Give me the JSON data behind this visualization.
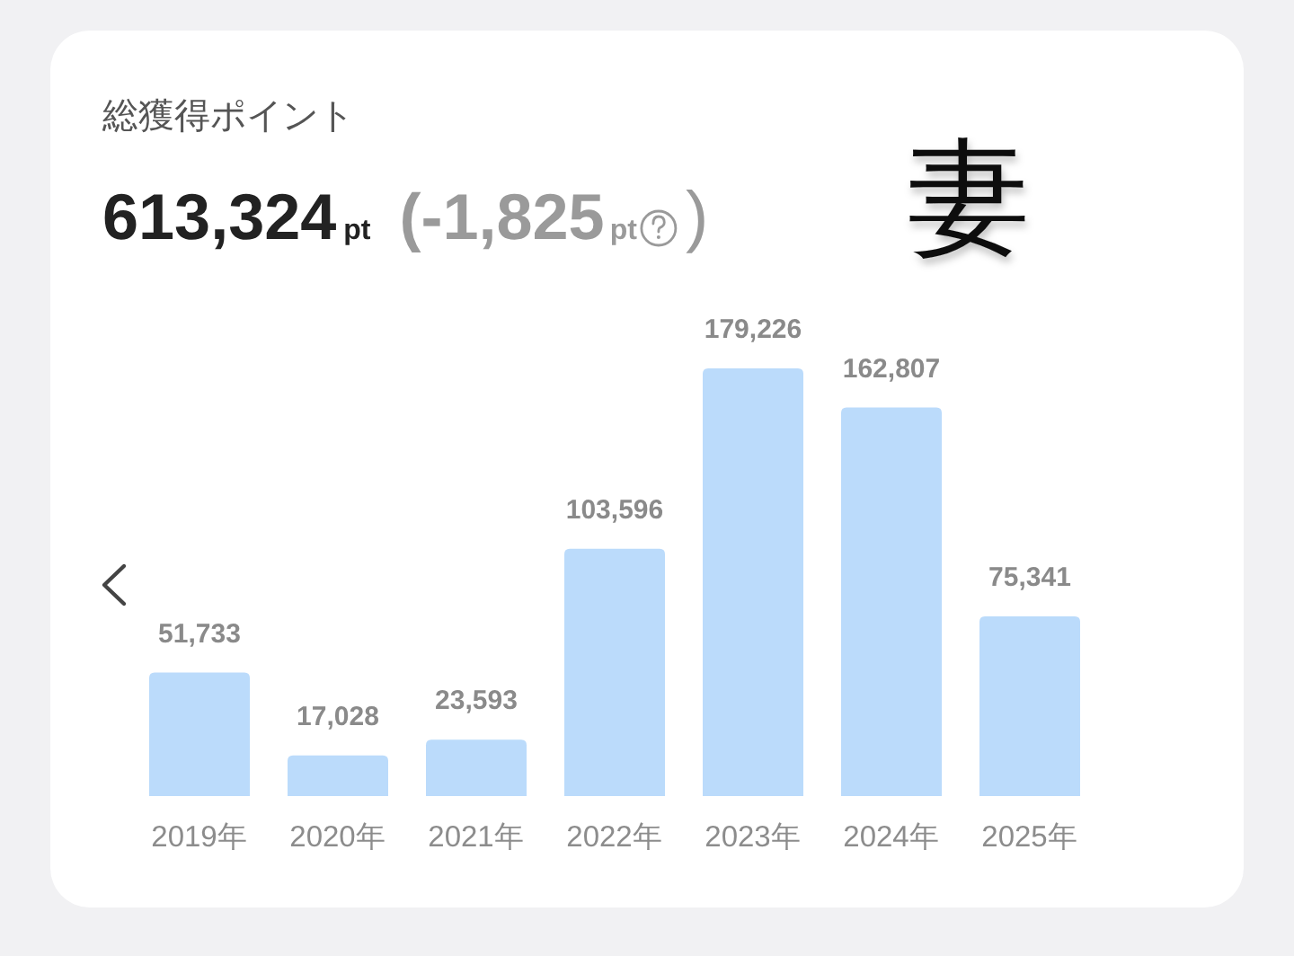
{
  "chart_data": {
    "type": "bar",
    "title": "総獲得ポイント",
    "annotations": [
      "613,324",
      "pt",
      "(-1,825",
      "pt",
      ")",
      "妻"
    ],
    "categories": [
      "2019年",
      "2020年",
      "2021年",
      "2022年",
      "2023年",
      "2024年",
      "2025年"
    ],
    "values": [
      51733,
      17028,
      23593,
      103596,
      179226,
      162807,
      75341
    ],
    "value_labels": [
      "51,733",
      "17,028",
      "23,593",
      "103,596",
      "179,226",
      "162,807",
      "75,341"
    ],
    "color": "#bbdbfb"
  }
}
